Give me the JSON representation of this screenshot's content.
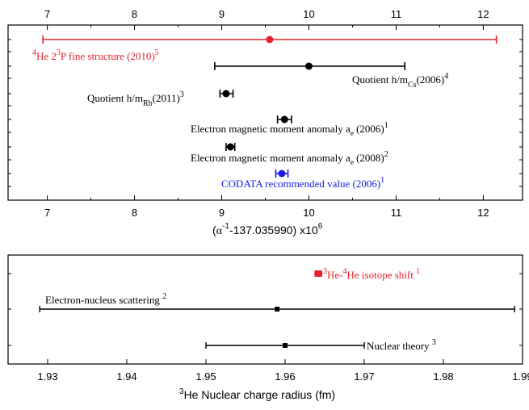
{
  "colors": {
    "black": "#000000",
    "red": "#e8202a",
    "blue": "#1a1ae6"
  },
  "chart_data": [
    {
      "type": "scatter",
      "subtype": "error-bar",
      "xlim": [
        6.55,
        12.45
      ],
      "xticks": [
        7,
        8,
        9,
        10,
        11,
        12
      ],
      "tick_labels": [
        "7",
        "8",
        "9",
        "10",
        "11",
        "12"
      ],
      "xlabel": {
        "alpha": "α",
        "sup1": "-1",
        "mid": "-137.035990) x10",
        "sup2": "6",
        "open": "("
      },
      "points": [
        {
          "id": "he-fine",
          "x": 9.55,
          "xerr_low": 6.95,
          "xerr_high": 12.15,
          "row": 1,
          "color": "red",
          "label": {
            "base1": "",
            "pre": "4",
            "t1": "He 2",
            "sup": "3",
            "t2": "P fine structure (2010)",
            "sup2": "5"
          }
        },
        {
          "id": "cs",
          "x": 10.0,
          "xerr_low": 8.92,
          "xerr_high": 11.1,
          "row": 2,
          "color": "black",
          "label": {
            "t1": "Quotient h/m",
            "sub": "Cs",
            "t2": "(2006)",
            "sup2": "4"
          }
        },
        {
          "id": "rb",
          "x": 9.05,
          "xerr_low": 8.98,
          "xerr_high": 9.13,
          "row": 3,
          "color": "black",
          "label": {
            "t1": "Quotient h/m",
            "sub": "Rb",
            "t2": "(2011)",
            "sup2": "3"
          }
        },
        {
          "id": "ae2006",
          "x": 9.72,
          "xerr_low": 9.64,
          "xerr_high": 9.8,
          "row": 4,
          "color": "black",
          "label": {
            "t1": "Electron magnetic moment anomaly a",
            "sub": "e",
            "t2": " (2006)",
            "sup2": "1"
          }
        },
        {
          "id": "ae2008",
          "x": 9.1,
          "xerr_low": 9.05,
          "xerr_high": 9.15,
          "row": 5,
          "color": "black",
          "label": {
            "t1": "Electron magnetic moment anomaly a",
            "sub": "e",
            "t2": " (2008)",
            "sup2": "2"
          }
        },
        {
          "id": "codata",
          "x": 9.69,
          "xerr_low": 9.62,
          "xerr_high": 9.76,
          "row": 6,
          "color": "blue",
          "label": {
            "t1": "CODATA recommended value (2006)",
            "sup2": "1"
          }
        }
      ]
    },
    {
      "type": "scatter",
      "subtype": "error-bar",
      "xlim": [
        1.925,
        1.99
      ],
      "xticks": [
        1.93,
        1.94,
        1.95,
        1.96,
        1.97,
        1.98,
        1.99
      ],
      "tick_labels": [
        "1.93",
        "1.94",
        "1.95",
        "1.96",
        "1.97",
        "1.98",
        "1.99"
      ],
      "xlabel": {
        "sup": "3",
        "t1": "He Nuclear charge radius (fm)"
      },
      "points": [
        {
          "id": "isotope",
          "x": 1.9642,
          "xerr_low": 1.9638,
          "xerr_high": 1.9646,
          "row": 1,
          "color": "red",
          "label": {
            "sup0": "3",
            "t1": "He-",
            "sup1": "4",
            "t2": "He isotope shift ",
            "sup2": "1"
          }
        },
        {
          "id": "scattering",
          "x": 1.959,
          "xerr_low": 1.929,
          "xerr_high": 1.989,
          "row": 2,
          "color": "black",
          "label": {
            "t1": "Electron-nucleus scattering ",
            "sup2": "2"
          }
        },
        {
          "id": "theory",
          "x": 1.96,
          "xerr_low": 1.95,
          "xerr_high": 1.97,
          "row": 3,
          "color": "black",
          "label": {
            "t1": "Nuclear theory ",
            "sup2": "3"
          }
        }
      ]
    }
  ]
}
